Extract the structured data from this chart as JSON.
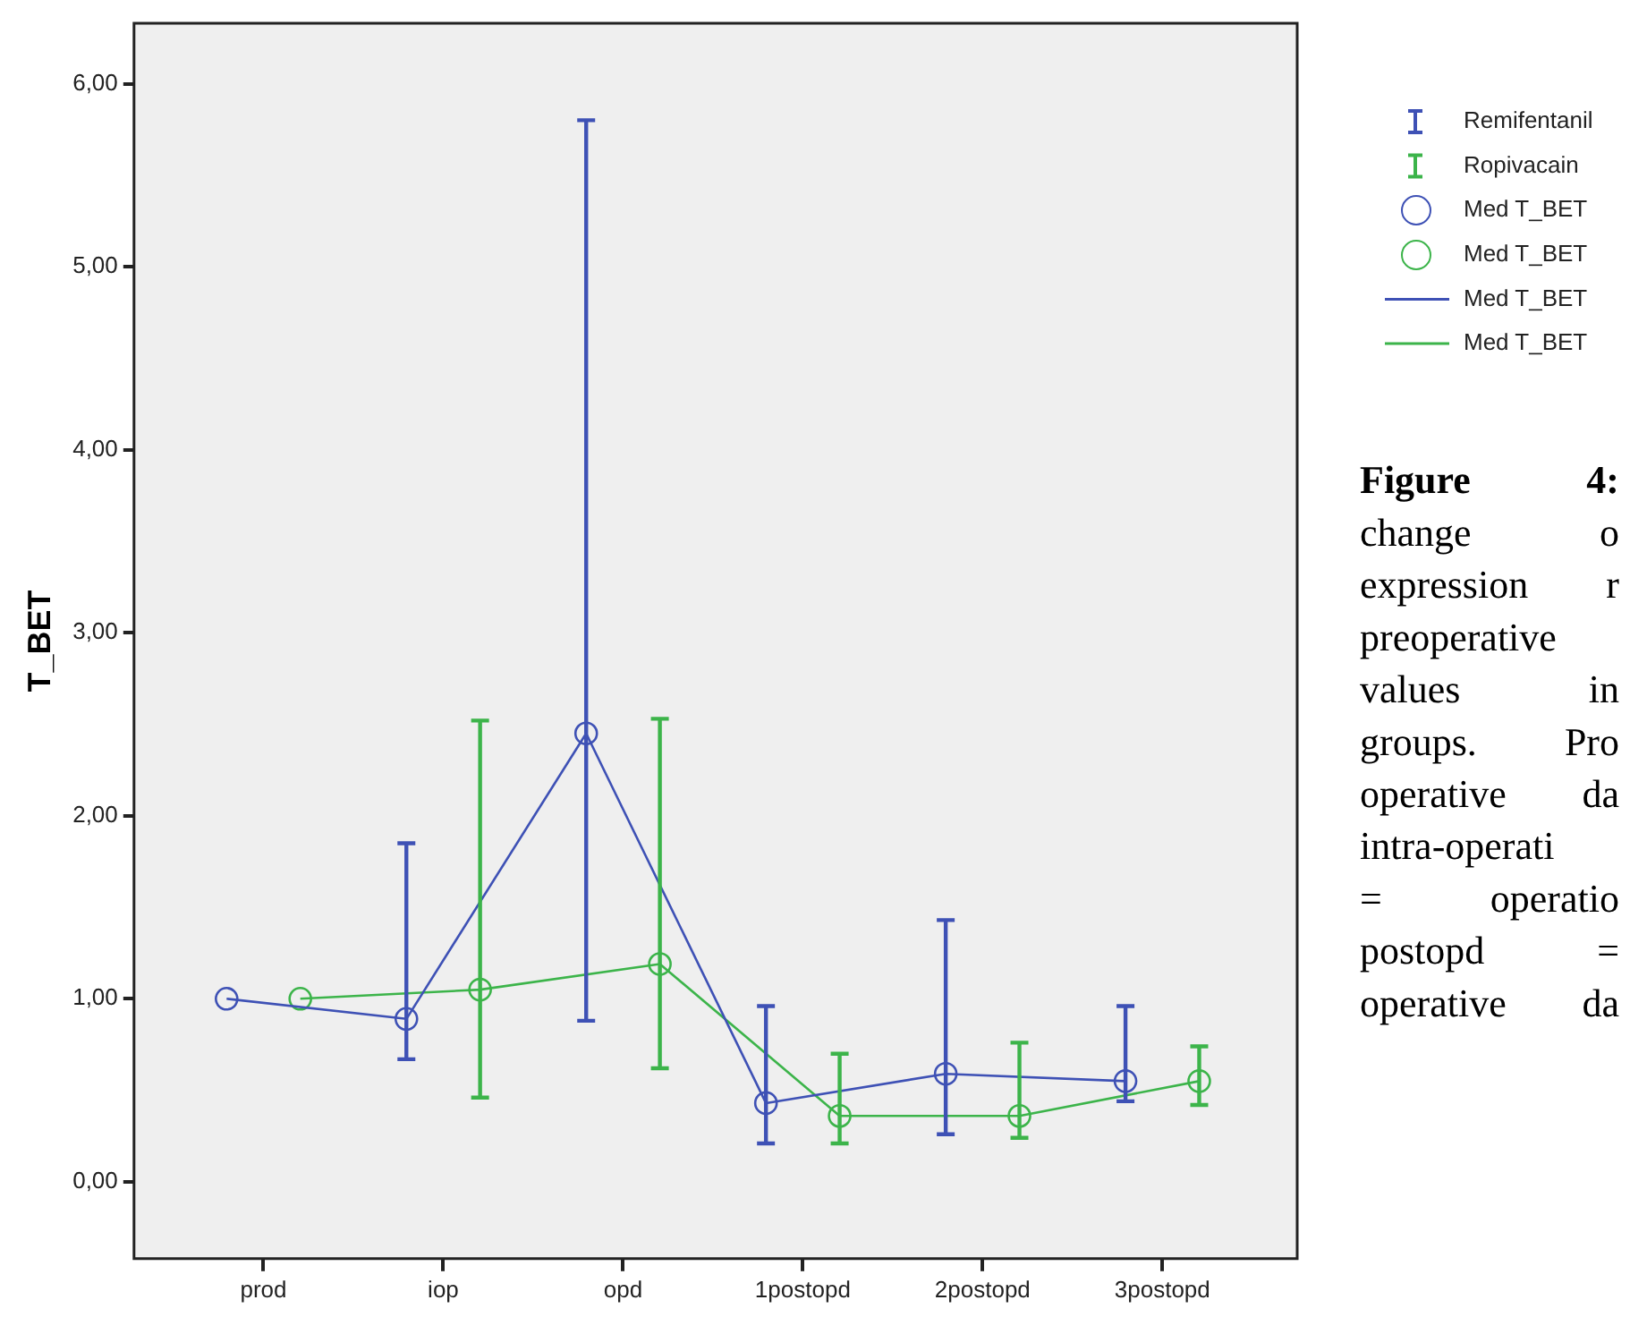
{
  "chart_data": {
    "type": "line",
    "ylabel": "T_BET",
    "categories": [
      "prod",
      "iop",
      "opd",
      "1postopd",
      "2postopd",
      "3postopd"
    ],
    "series": [
      {
        "name": "Remifentanil",
        "color": "#3e51b5",
        "values": [
          1.0,
          0.89,
          2.45,
          0.43,
          0.59,
          0.55
        ],
        "errors": [
          null,
          [
            0.67,
            1.85
          ],
          [
            0.88,
            5.8
          ],
          [
            0.21,
            0.96
          ],
          [
            0.26,
            1.43
          ],
          [
            0.44,
            0.96
          ]
        ]
      },
      {
        "name": "Ropivacain",
        "color": "#3cb44a",
        "values": [
          1.0,
          1.05,
          1.19,
          0.36,
          0.36,
          0.55
        ],
        "errors": [
          null,
          [
            0.46,
            2.52
          ],
          [
            0.62,
            2.53
          ],
          [
            0.21,
            0.7
          ],
          [
            0.24,
            0.76
          ],
          [
            0.42,
            0.74
          ]
        ]
      }
    ],
    "ylim": [
      -0.42,
      6.33
    ],
    "yticks": [
      {
        "value": 0,
        "label": "0,00"
      },
      {
        "value": 1,
        "label": "1,00"
      },
      {
        "value": 2,
        "label": "2,00"
      },
      {
        "value": 3,
        "label": "3,00"
      },
      {
        "value": 4,
        "label": "4,00"
      },
      {
        "value": 5,
        "label": "5,00"
      },
      {
        "value": 6,
        "label": "6,00"
      }
    ],
    "marker": "circle",
    "line_style": "solid",
    "grid": false,
    "legend": "right",
    "annotations": [
      "Med T_BET",
      "Med T_BET",
      "Med T_BET",
      "Med T_BET",
      "Figure 4:\nchange o\nexpression r\npreoperative\nvalues in\ngroups. Pro\noperative da\nintra-operati\n= operatio\npostopd =\noperative da"
    ]
  }
}
